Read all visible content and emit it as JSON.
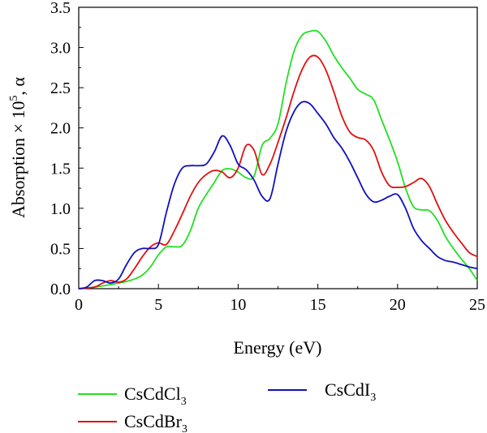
{
  "chart_data": {
    "type": "line",
    "title": "",
    "xlabel": "Energy (eV)",
    "ylabel": {
      "base": "Absorption × 10",
      "sup": "5",
      "tail": ", α"
    },
    "xlim": [
      0,
      25
    ],
    "ylim": [
      0,
      3.5
    ],
    "xticks": [
      "0",
      "5",
      "10",
      "15",
      "20",
      "25"
    ],
    "yticks": [
      "0.0",
      "0.5",
      "1.0",
      "1.5",
      "2.0",
      "2.5",
      "3.0",
      "3.5"
    ],
    "grid": false,
    "legend_position": "bottom",
    "series": [
      {
        "name": "CsCdCl₃",
        "label_parts": {
          "base": "CsCdCl",
          "sub": "3"
        },
        "color": "#22e022",
        "x": [
          0,
          1,
          2,
          2.5,
          3,
          3.5,
          4,
          4.5,
          5,
          5.5,
          6,
          6.5,
          7,
          7.5,
          8,
          8.5,
          9,
          9.5,
          10,
          10.5,
          11,
          11.5,
          12,
          12.5,
          13,
          13.5,
          14,
          14.5,
          15,
          15.5,
          16,
          16.5,
          17,
          17.5,
          18,
          18.5,
          19,
          19.5,
          20,
          20.5,
          21,
          21.5,
          22,
          22.5,
          23,
          23.5,
          24,
          24.5,
          25
        ],
        "y": [
          0,
          0.02,
          0.05,
          0.07,
          0.09,
          0.12,
          0.17,
          0.27,
          0.42,
          0.52,
          0.52,
          0.54,
          0.72,
          1.0,
          1.17,
          1.32,
          1.47,
          1.49,
          1.45,
          1.38,
          1.4,
          1.78,
          1.87,
          2.05,
          2.55,
          2.95,
          3.15,
          3.2,
          3.2,
          3.08,
          2.9,
          2.75,
          2.62,
          2.48,
          2.42,
          2.35,
          2.1,
          1.85,
          1.58,
          1.25,
          1.02,
          0.98,
          0.97,
          0.85,
          0.65,
          0.5,
          0.37,
          0.25,
          0.1
        ]
      },
      {
        "name": "CsCdBr₃",
        "label_parts": {
          "base": "CsCdBr",
          "sub": "3"
        },
        "color": "#e01010",
        "x": [
          0,
          1,
          1.5,
          2,
          2.5,
          3,
          3.5,
          4,
          4.5,
          5,
          5.5,
          6,
          6.5,
          7,
          7.5,
          8,
          8.5,
          9,
          9.5,
          10,
          10.5,
          11,
          11.5,
          12,
          12.5,
          13,
          13.5,
          14,
          14.5,
          15,
          15.5,
          16,
          16.5,
          17,
          17.5,
          18,
          18.5,
          19,
          19.5,
          20,
          20.5,
          21,
          21.5,
          22,
          22.5,
          23,
          23.5,
          24,
          24.5,
          25
        ],
        "y": [
          0,
          0.02,
          0.07,
          0.1,
          0.08,
          0.12,
          0.25,
          0.4,
          0.52,
          0.57,
          0.55,
          0.72,
          0.93,
          1.15,
          1.32,
          1.42,
          1.47,
          1.45,
          1.38,
          1.5,
          1.78,
          1.72,
          1.42,
          1.55,
          1.82,
          2.12,
          2.45,
          2.72,
          2.88,
          2.88,
          2.72,
          2.45,
          2.15,
          1.95,
          1.88,
          1.85,
          1.72,
          1.45,
          1.28,
          1.26,
          1.27,
          1.32,
          1.37,
          1.27,
          1.05,
          0.85,
          0.7,
          0.57,
          0.45,
          0.4
        ]
      },
      {
        "name": "CsCdI₃",
        "label_parts": {
          "base": "CsCdI",
          "sub": "3"
        },
        "color": "#1010c0",
        "x": [
          0,
          0.5,
          1,
          1.5,
          2,
          2.5,
          3,
          3.5,
          4,
          4.5,
          5,
          5.5,
          6,
          6.5,
          7,
          7.5,
          8,
          8.5,
          9,
          9.5,
          10,
          10.5,
          11,
          11.5,
          12,
          12.5,
          13,
          13.5,
          14,
          14.5,
          15,
          15.5,
          16,
          16.5,
          17,
          17.5,
          18,
          18.5,
          19,
          19.5,
          20,
          20.5,
          21,
          21.5,
          22,
          22.5,
          23,
          23.5,
          24,
          24.5,
          25
        ],
        "y": [
          0,
          0.02,
          0.1,
          0.1,
          0.07,
          0.12,
          0.3,
          0.45,
          0.5,
          0.5,
          0.55,
          0.95,
          1.3,
          1.5,
          1.53,
          1.53,
          1.55,
          1.7,
          1.9,
          1.78,
          1.55,
          1.48,
          1.35,
          1.15,
          1.12,
          1.55,
          1.95,
          2.2,
          2.32,
          2.3,
          2.18,
          2.05,
          1.88,
          1.75,
          1.58,
          1.38,
          1.18,
          1.08,
          1.1,
          1.15,
          1.17,
          1.0,
          0.75,
          0.6,
          0.5,
          0.4,
          0.35,
          0.33,
          0.3,
          0.27,
          0.25
        ]
      }
    ]
  }
}
